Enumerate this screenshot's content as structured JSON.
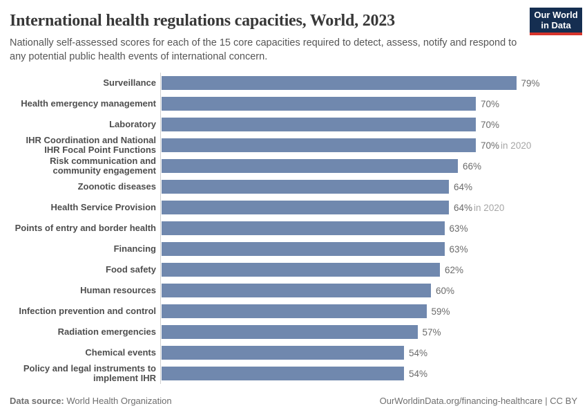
{
  "header": {
    "title": "International health regulations capacities, World, 2023",
    "subtitle": "Nationally self-assessed scores for each of the 15 core capacities required to detect, assess, notify and respond to any potential public health events of international concern.",
    "logo": {
      "line1": "Our World",
      "line2": "in Data",
      "bg_color": "#152e51",
      "accent_color": "#d7352c"
    }
  },
  "chart_data": {
    "type": "bar",
    "orientation": "horizontal",
    "title": "International health regulations capacities, World, 2023",
    "unit": "%",
    "categories": [
      "Surveillance",
      "Health emergency management",
      "Laboratory",
      "IHR Coordination and National IHR Focal Point Functions",
      "Risk communication and community engagement",
      "Zoonotic diseases",
      "Health Service Provision",
      "Points of entry and border health",
      "Financing",
      "Food safety",
      "Human resources",
      "Infection prevention and control",
      "Radiation emergencies",
      "Chemical events",
      "Policy and legal instruments to implement IHR"
    ],
    "values": [
      79,
      70,
      70,
      70,
      66,
      64,
      64,
      63,
      63,
      62,
      60,
      59,
      57,
      54,
      54
    ],
    "annotations": [
      "",
      "",
      "",
      "in 2020",
      "",
      "",
      "in 2020",
      "",
      "",
      "",
      "",
      "",
      "",
      "",
      ""
    ],
    "bar_color": "#7088ae",
    "axis_line_color": "#cfcfcf",
    "grid": "off",
    "legend": "none"
  },
  "footer": {
    "source_label": "Data source:",
    "source_value": " World Health Organization",
    "attribution": "OurWorldinData.org/financing-healthcare | CC BY"
  }
}
